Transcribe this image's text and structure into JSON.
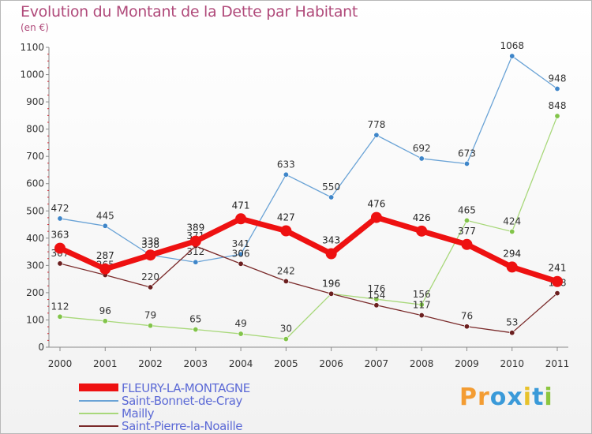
{
  "header": {
    "title": "Evolution du Montant de la Dette par Habitant",
    "unit": "(en €)"
  },
  "logo": {
    "letters": [
      "P",
      "r",
      "o",
      "x",
      "i",
      "t",
      "i"
    ],
    "colors": [
      "#f39c32",
      "#f39c32",
      "#3a9ad9",
      "#3a9ad9",
      "#e8c22b",
      "#3a9ad9",
      "#8cc63f"
    ]
  },
  "chart_data": {
    "type": "line",
    "title": "Evolution du Montant de la Dette par Habitant",
    "ylabel": "(en €)",
    "xlabel": "",
    "ylim": [
      0,
      1100
    ],
    "yticks": [
      0,
      100,
      200,
      300,
      400,
      500,
      600,
      700,
      800,
      900,
      1000,
      1100
    ],
    "x": [
      "2000",
      "2001",
      "2002",
      "2003",
      "2004",
      "2005",
      "2006",
      "2007",
      "2008",
      "2009",
      "2010",
      "2011"
    ],
    "grid": false,
    "legend_position": "bottom-left",
    "series": [
      {
        "name": "Saint-Bonnet-de-Cray",
        "color": "#6aa3d6",
        "marker": "#3f86c9",
        "values": [
          472,
          445,
          338,
          312,
          341,
          633,
          550,
          778,
          692,
          673,
          1068,
          948
        ]
      },
      {
        "name": "Mailly",
        "color": "#a8d87a",
        "marker": "#82c44a",
        "values": [
          112,
          96,
          79,
          65,
          49,
          30,
          196,
          176,
          156,
          465,
          424,
          848
        ]
      },
      {
        "name": "Saint-Pierre-la-Noaille",
        "color": "#7a2a2a",
        "marker": "#6b1f1f",
        "values": [
          307,
          265,
          220,
          371,
          306,
          242,
          196,
          154,
          117,
          76,
          53,
          198
        ]
      },
      {
        "name": "FLEURY-LA-MONTAGNE",
        "color": "#ee1111",
        "marker": "#ee1111",
        "values": [
          363,
          287,
          338,
          389,
          471,
          427,
          343,
          476,
          426,
          377,
          294,
          241
        ]
      }
    ],
    "legend_order": [
      "FLEURY-LA-MONTAGNE",
      "Saint-Bonnet-de-Cray",
      "Mailly",
      "Saint-Pierre-la-Noaille"
    ]
  }
}
